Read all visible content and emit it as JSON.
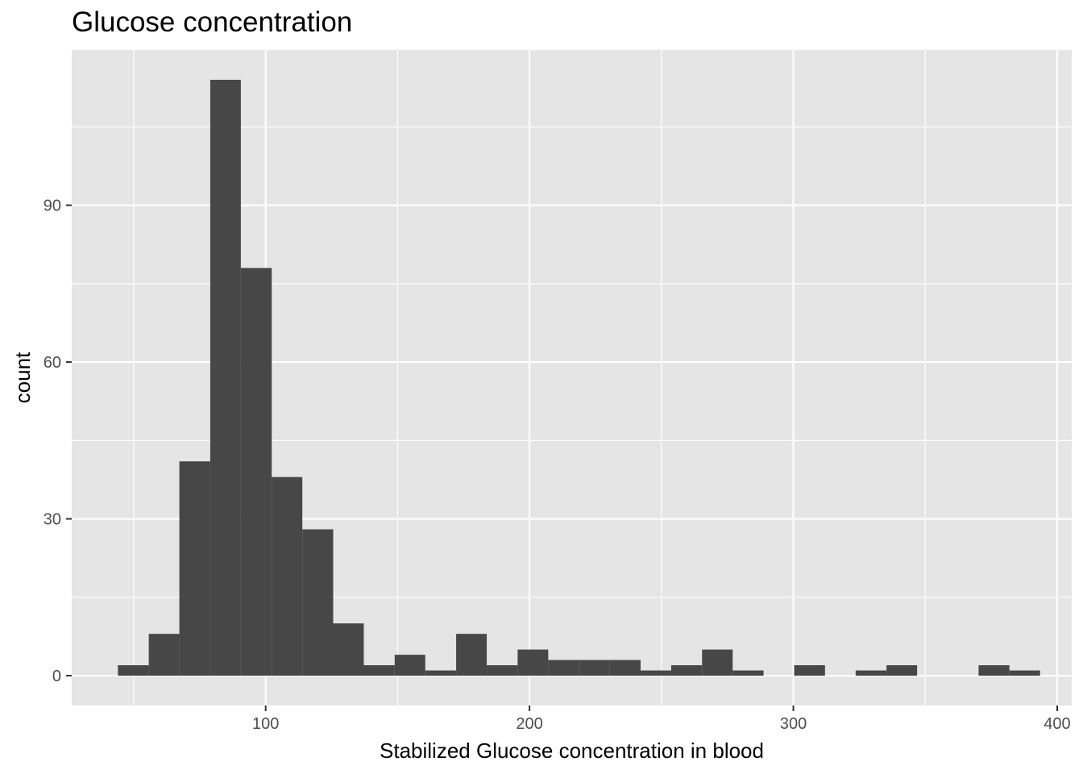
{
  "chart_data": {
    "type": "bar",
    "title": "Glucose concentration",
    "xlabel": "Stabilized Glucose concentration in blood",
    "ylabel": "count",
    "xlim": [
      26.5,
      405.5
    ],
    "ylim": [
      -5.7,
      119.7
    ],
    "x_ticks": [
      100,
      200,
      300,
      400
    ],
    "x_minor": [
      50,
      150,
      250,
      350
    ],
    "y_ticks": [
      0,
      30,
      60,
      90
    ],
    "y_minor": [
      15,
      45,
      75,
      105
    ],
    "bins": [
      {
        "x0": 44.0,
        "x1": 55.7,
        "count": 2
      },
      {
        "x0": 55.7,
        "x1": 67.3,
        "count": 8
      },
      {
        "x0": 67.3,
        "x1": 79.0,
        "count": 41
      },
      {
        "x0": 79.0,
        "x1": 90.6,
        "count": 114
      },
      {
        "x0": 90.6,
        "x1": 102.3,
        "count": 78
      },
      {
        "x0": 102.3,
        "x1": 113.9,
        "count": 38
      },
      {
        "x0": 113.9,
        "x1": 125.6,
        "count": 28
      },
      {
        "x0": 125.6,
        "x1": 137.2,
        "count": 10
      },
      {
        "x0": 137.2,
        "x1": 148.9,
        "count": 2
      },
      {
        "x0": 148.9,
        "x1": 160.5,
        "count": 4
      },
      {
        "x0": 160.5,
        "x1": 172.2,
        "count": 1
      },
      {
        "x0": 172.2,
        "x1": 183.8,
        "count": 8
      },
      {
        "x0": 183.8,
        "x1": 195.5,
        "count": 2
      },
      {
        "x0": 195.5,
        "x1": 207.1,
        "count": 5
      },
      {
        "x0": 207.1,
        "x1": 218.8,
        "count": 3
      },
      {
        "x0": 218.8,
        "x1": 230.4,
        "count": 3
      },
      {
        "x0": 230.4,
        "x1": 242.1,
        "count": 3
      },
      {
        "x0": 242.1,
        "x1": 253.7,
        "count": 1
      },
      {
        "x0": 253.7,
        "x1": 265.4,
        "count": 2
      },
      {
        "x0": 265.4,
        "x1": 277.0,
        "count": 5
      },
      {
        "x0": 277.0,
        "x1": 288.7,
        "count": 1
      },
      {
        "x0": 288.7,
        "x1": 300.3,
        "count": 0
      },
      {
        "x0": 300.3,
        "x1": 312.0,
        "count": 2
      },
      {
        "x0": 312.0,
        "x1": 323.6,
        "count": 0
      },
      {
        "x0": 323.6,
        "x1": 335.3,
        "count": 1
      },
      {
        "x0": 335.3,
        "x1": 346.9,
        "count": 2
      },
      {
        "x0": 346.9,
        "x1": 358.6,
        "count": 0
      },
      {
        "x0": 358.6,
        "x1": 370.2,
        "count": 0
      },
      {
        "x0": 370.2,
        "x1": 381.9,
        "count": 2
      },
      {
        "x0": 381.9,
        "x1": 393.5,
        "count": 1
      }
    ],
    "colors": {
      "panel": "#e5e5e5",
      "grid": "#ffffff",
      "bar": "#474747",
      "tick_text": "#4d4d4d",
      "tick_mark": "#333333"
    },
    "grid": true
  }
}
